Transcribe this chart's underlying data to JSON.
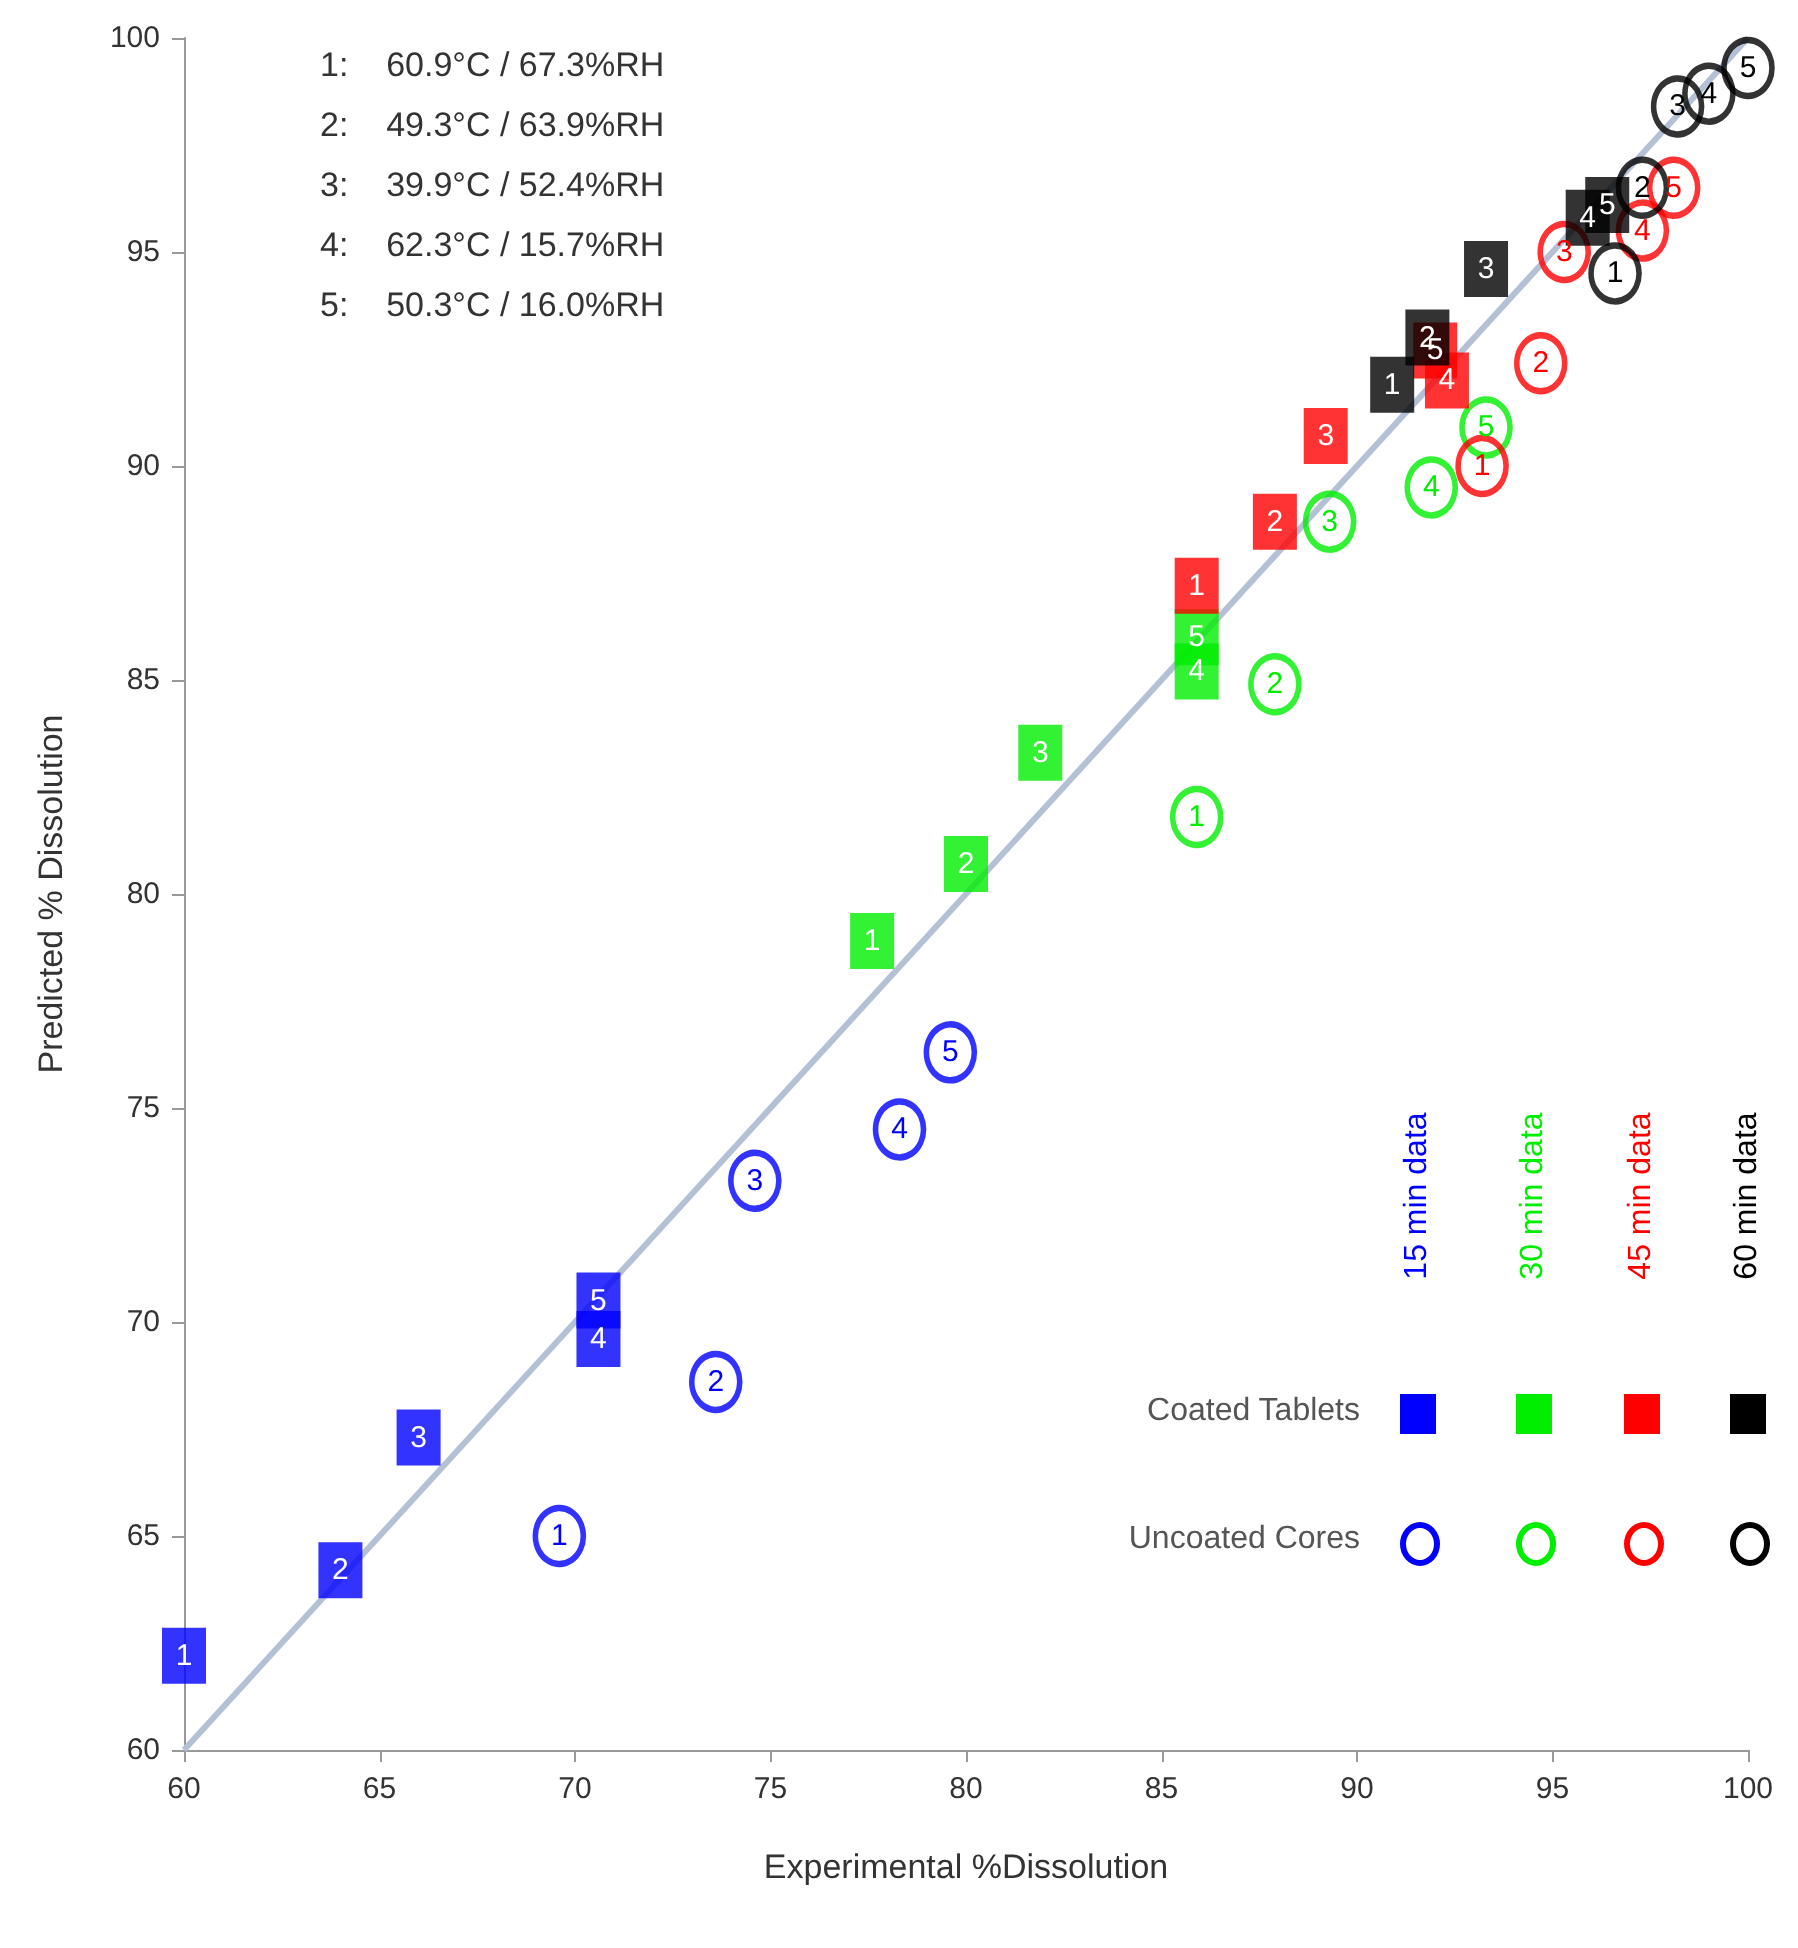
{
  "chart_data": {
    "type": "scatter",
    "xlabel": "Experimental %Dissolution",
    "ylabel": "Predicted % Dissolution",
    "xlim": [
      60,
      100
    ],
    "xticks": [
      60,
      65,
      70,
      75,
      80,
      85,
      90,
      95,
      100
    ],
    "ylim": [
      60,
      100
    ],
    "yticks": [
      60,
      65,
      70,
      75,
      80,
      85,
      90,
      95,
      100
    ],
    "grid": false,
    "annotations": [
      "1: 60.9°C / 67.3%RH",
      "2: 49.3°C / 63.9%RH",
      "3: 39.9°C / 52.4%RH",
      "4: 62.3°C / 15.7%RH",
      "5: 50.3°C / 16.0%RH",
      "15 min data",
      "30 min data",
      "45 min data",
      "60 min data",
      "Coated Tablets",
      "Uncoated Cores",
      {
        "text": "1",
        "x": 60.0,
        "y": 62.2
      },
      {
        "text": "2",
        "x": 64.0,
        "y": 64.2
      },
      {
        "text": "3",
        "x": 66.0,
        "y": 67.3
      },
      {
        "text": "4",
        "x": 70.6,
        "y": 69.6
      },
      {
        "text": "5",
        "x": 70.6,
        "y": 70.5
      },
      {
        "text": "1",
        "x": 77.6,
        "y": 78.9
      },
      {
        "text": "2",
        "x": 80.0,
        "y": 80.7
      },
      {
        "text": "3",
        "x": 81.9,
        "y": 83.3
      },
      {
        "text": "4",
        "x": 85.9,
        "y": 85.2
      },
      {
        "text": "5",
        "x": 85.9,
        "y": 86.0
      },
      {
        "text": "1",
        "x": 85.9,
        "y": 87.2
      },
      {
        "text": "2",
        "x": 87.9,
        "y": 88.7
      },
      {
        "text": "3",
        "x": 89.2,
        "y": 90.7
      },
      {
        "text": "4",
        "x": 92.3,
        "y": 92.0
      },
      {
        "text": "5",
        "x": 92.0,
        "y": 92.7
      },
      {
        "text": "1",
        "x": 90.9,
        "y": 91.9
      },
      {
        "text": "2",
        "x": 91.8,
        "y": 93.0
      },
      {
        "text": "3",
        "x": 93.3,
        "y": 94.6
      },
      {
        "text": "4",
        "x": 95.9,
        "y": 95.8
      },
      {
        "text": "5",
        "x": 96.4,
        "y": 96.1
      },
      {
        "text": "1",
        "x": 69.6,
        "y": 65.0
      },
      {
        "text": "2",
        "x": 73.6,
        "y": 68.6
      },
      {
        "text": "3",
        "x": 74.6,
        "y": 73.3
      },
      {
        "text": "4",
        "x": 78.3,
        "y": 74.5
      },
      {
        "text": "5",
        "x": 79.6,
        "y": 76.3
      },
      {
        "text": "1",
        "x": 85.9,
        "y": 81.8
      },
      {
        "text": "2",
        "x": 87.9,
        "y": 84.9
      },
      {
        "text": "3",
        "x": 89.3,
        "y": 88.7
      },
      {
        "text": "4",
        "x": 91.9,
        "y": 89.5
      },
      {
        "text": "5",
        "x": 93.3,
        "y": 90.9
      },
      {
        "text": "1",
        "x": 93.2,
        "y": 90.0
      },
      {
        "text": "2",
        "x": 94.7,
        "y": 92.4
      },
      {
        "text": "3",
        "x": 95.3,
        "y": 95.0
      },
      {
        "text": "4",
        "x": 97.3,
        "y": 95.5
      },
      {
        "text": "5",
        "x": 98.1,
        "y": 96.5
      },
      {
        "text": "1",
        "x": 96.6,
        "y": 94.5
      },
      {
        "text": "2",
        "x": 97.3,
        "y": 96.5
      },
      {
        "text": "3",
        "x": 98.2,
        "y": 98.4
      },
      {
        "text": "4",
        "x": 99.0,
        "y": 98.7
      },
      {
        "text": "5",
        "x": 100,
        "y": 99.3
      }
    ],
    "series": [
      {
        "type": "line",
        "color": "#b4c0d6",
        "marker": "none",
        "x": [
          60,
          100
        ],
        "values": [
          60,
          100
        ]
      },
      {
        "color": "#0000ff",
        "marker": "square",
        "x": [
          60.0,
          64.0,
          66.0,
          70.6,
          70.6
        ],
        "values": [
          62.2,
          64.2,
          67.3,
          69.6,
          70.5
        ]
      },
      {
        "color": "#00ee00",
        "marker": "square",
        "x": [
          77.6,
          80.0,
          81.9,
          85.9,
          85.9
        ],
        "values": [
          78.9,
          80.7,
          83.3,
          85.2,
          86.0
        ]
      },
      {
        "color": "#ff0000",
        "marker": "square",
        "x": [
          85.9,
          87.9,
          89.2,
          92.3,
          92.0
        ],
        "values": [
          87.2,
          88.7,
          90.7,
          92.0,
          92.7
        ]
      },
      {
        "color": "#000000",
        "marker": "square",
        "x": [
          90.9,
          91.8,
          93.3,
          95.9,
          96.4
        ],
        "values": [
          91.9,
          93.0,
          94.6,
          95.8,
          96.1
        ]
      },
      {
        "color": "#0000ff",
        "marker": "circle",
        "x": [
          69.6,
          73.6,
          74.6,
          78.3,
          79.6
        ],
        "values": [
          65.0,
          68.6,
          73.3,
          74.5,
          76.3
        ]
      },
      {
        "color": "#00ee00",
        "marker": "circle",
        "x": [
          85.9,
          87.9,
          89.3,
          91.9,
          93.3
        ],
        "values": [
          81.8,
          84.9,
          88.7,
          89.5,
          90.9
        ]
      },
      {
        "color": "#ff0000",
        "marker": "circle",
        "x": [
          93.2,
          94.7,
          95.3,
          97.3,
          98.1
        ],
        "values": [
          90.0,
          92.4,
          95.0,
          95.5,
          96.5
        ]
      },
      {
        "color": "#000000",
        "marker": "circle",
        "x": [
          96.6,
          97.3,
          98.2,
          99.0,
          100
        ],
        "values": [
          94.5,
          96.5,
          98.4,
          98.7,
          99.3
        ]
      }
    ]
  }
}
